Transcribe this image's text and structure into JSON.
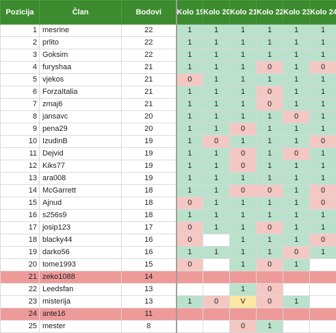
{
  "headers": [
    "Pozicija",
    "Član",
    "Bodovi",
    "Kolo 19",
    "Kolo 20",
    "Kolo 21",
    "Kolo 22",
    "Kolo 23",
    "Kolo 24"
  ],
  "colors": {
    "header_bg": "#3d8b2f",
    "one": "#b9e1cb",
    "zero": "#f4c7c3",
    "v": "#fce8a2",
    "highlight_row": "#ee9a99",
    "empty": "#ffffff"
  },
  "rows": [
    {
      "pos": "1",
      "name": "mesrine",
      "points": "22",
      "k": [
        "1",
        "1",
        "1",
        "1",
        "1",
        "1"
      ]
    },
    {
      "pos": "2",
      "name": "prlito",
      "points": "22",
      "k": [
        "1",
        "1",
        "1",
        "1",
        "1",
        "1"
      ]
    },
    {
      "pos": "3",
      "name": "Goksim",
      "points": "22",
      "k": [
        "1",
        "1",
        "1",
        "1",
        "1",
        "1"
      ]
    },
    {
      "pos": "4",
      "name": "furyshaa",
      "points": "21",
      "k": [
        "1",
        "1",
        "1",
        "0",
        "1",
        "0"
      ]
    },
    {
      "pos": "5",
      "name": "vjekos",
      "points": "21",
      "k": [
        "0",
        "1",
        "1",
        "1",
        "1",
        "1"
      ]
    },
    {
      "pos": "6",
      "name": "ForzaItalia",
      "points": "21",
      "k": [
        "1",
        "1",
        "1",
        "0",
        "1",
        "1"
      ]
    },
    {
      "pos": "7",
      "name": "zmaj6",
      "points": "21",
      "k": [
        "1",
        "1",
        "1",
        "0",
        "1",
        "1"
      ]
    },
    {
      "pos": "8",
      "name": "jansavc",
      "points": "20",
      "k": [
        "1",
        "1",
        "1",
        "1",
        "0",
        "1"
      ]
    },
    {
      "pos": "9",
      "name": "pena29",
      "points": "20",
      "k": [
        "1",
        "1",
        "0",
        "1",
        "1",
        "1"
      ]
    },
    {
      "pos": "10",
      "name": "IzudinB",
      "points": "19",
      "k": [
        "1",
        "0",
        "1",
        "1",
        "1",
        "0"
      ]
    },
    {
      "pos": "11",
      "name": "Dejvid",
      "points": "19",
      "k": [
        "1",
        "1",
        "0",
        "1",
        "0",
        "1"
      ]
    },
    {
      "pos": "12",
      "name": "Kiks77",
      "points": "19",
      "k": [
        "1",
        "1",
        "0",
        "1",
        "1",
        "1"
      ]
    },
    {
      "pos": "13",
      "name": "ara008",
      "points": "19",
      "k": [
        "1",
        "1",
        "1",
        "1",
        "1",
        "1"
      ]
    },
    {
      "pos": "14",
      "name": "McGarrett",
      "points": "18",
      "k": [
        "1",
        "1",
        "0",
        "0",
        "1",
        "0"
      ]
    },
    {
      "pos": "15",
      "name": "Ajnud",
      "points": "18",
      "k": [
        "0",
        "1",
        "1",
        "1",
        "1",
        "0"
      ]
    },
    {
      "pos": "16",
      "name": "s256s9",
      "points": "18",
      "k": [
        "1",
        "1",
        "1",
        "1",
        "1",
        "1"
      ]
    },
    {
      "pos": "17",
      "name": "josip123",
      "points": "17",
      "k": [
        "0",
        "1",
        "1",
        "0",
        "1",
        "1"
      ]
    },
    {
      "pos": "18",
      "name": "blacky44",
      "points": "16",
      "k": [
        "0",
        "",
        "1",
        "1",
        "1",
        "0"
      ]
    },
    {
      "pos": "19",
      "name": "darko56",
      "points": "16",
      "k": [
        "1",
        "1",
        "1",
        "1",
        "0",
        "1"
      ]
    },
    {
      "pos": "20",
      "name": "tome1993",
      "points": "15",
      "k": [
        "0",
        "",
        "1",
        "0",
        "1",
        ""
      ]
    },
    {
      "pos": "21",
      "name": "zeko1088",
      "points": "14",
      "k": [
        "",
        "",
        "",
        "",
        "",
        ""
      ],
      "highlight": true
    },
    {
      "pos": "22",
      "name": "Leedsfan",
      "points": "13",
      "k": [
        "",
        "",
        "1",
        "0",
        "",
        ""
      ]
    },
    {
      "pos": "23",
      "name": "misterija",
      "points": "13",
      "k": [
        "1",
        "0",
        "V",
        "0",
        "1",
        ""
      ]
    },
    {
      "pos": "24",
      "name": "ante16",
      "points": "11",
      "k": [
        "",
        "",
        "",
        "",
        "",
        ""
      ],
      "highlight": true
    },
    {
      "pos": "25",
      "name": "mester",
      "points": "8",
      "k": [
        "",
        "",
        "0",
        "1",
        "",
        ""
      ]
    }
  ]
}
